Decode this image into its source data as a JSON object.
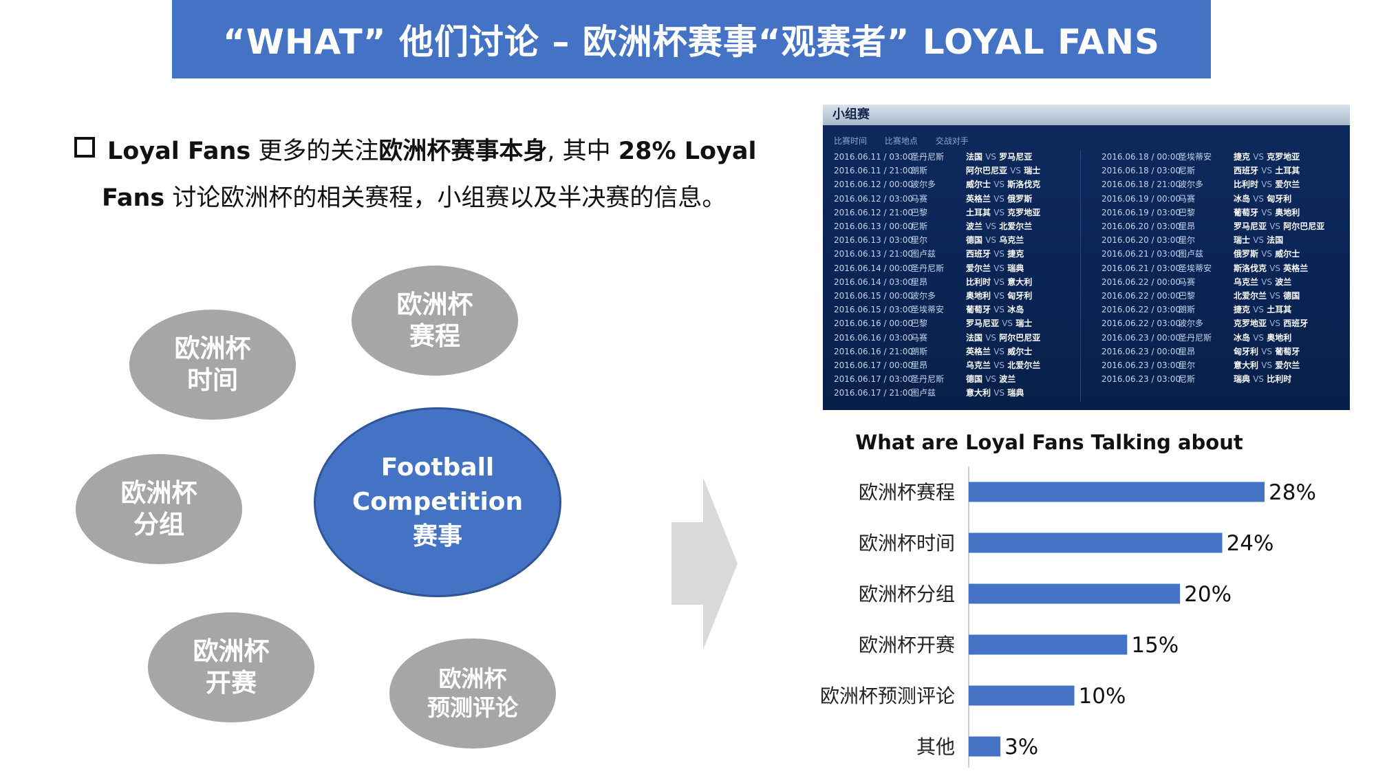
{
  "header": {
    "title": "“WHAT” 他们讨论 – 欧洲杯赛事“观赛者” LOYAL FANS"
  },
  "bullet": {
    "part1": "Loyal Fans",
    "part2": " 更多的关注",
    "part3": "欧洲杯赛事本身",
    "part4": ", 其中 ",
    "part5": "28% Loyal",
    "part6": "Fans",
    "part7": " 讨论欧洲杯的相关赛程，小组赛以及半决赛的信息。"
  },
  "bubbles": {
    "center": {
      "line1": "Football",
      "line2": "Competition",
      "line3": "赛事"
    },
    "schedule": {
      "line1": "欧洲杯",
      "line2": "赛程"
    },
    "time": {
      "line1": "欧洲杯",
      "line2": "时间"
    },
    "group": {
      "line1": "欧洲杯",
      "line2": "分组"
    },
    "opening": {
      "line1": "欧洲杯",
      "line2": "开赛"
    },
    "prediction": {
      "line1": "欧洲杯",
      "line2": "预测评论"
    }
  },
  "schedule_panel": {
    "title": "小组赛",
    "col_headers": [
      "比赛时间",
      "比赛地点",
      "交战对手"
    ],
    "left_matches": [
      {
        "date": "2016.06.11 / 03:00",
        "city": "圣丹尼斯",
        "home": "法国",
        "away": "罗马尼亚"
      },
      {
        "date": "2016.06.11 / 21:00",
        "city": "朗斯",
        "home": "阿尔巴尼亚",
        "away": "瑞士"
      },
      {
        "date": "2016.06.12 / 00:00",
        "city": "波尔多",
        "home": "威尔士",
        "away": "斯洛伐克"
      },
      {
        "date": "2016.06.12 / 03:00",
        "city": "马赛",
        "home": "英格兰",
        "away": "俄罗斯"
      },
      {
        "date": "2016.06.12 / 21:00",
        "city": "巴黎",
        "home": "土耳其",
        "away": "克罗地亚"
      },
      {
        "date": "2016.06.13 / 00:00",
        "city": "尼斯",
        "home": "波兰",
        "away": "北爱尔兰"
      },
      {
        "date": "2016.06.13 / 03:00",
        "city": "里尔",
        "home": "德国",
        "away": "乌克兰"
      },
      {
        "date": "2016.06.13 / 21:00",
        "city": "图卢兹",
        "home": "西班牙",
        "away": "捷克"
      },
      {
        "date": "2016.06.14 / 00:00",
        "city": "圣丹尼斯",
        "home": "爱尔兰",
        "away": "瑞典"
      },
      {
        "date": "2016.06.14 / 03:00",
        "city": "里昂",
        "home": "比利时",
        "away": "意大利"
      },
      {
        "date": "2016.06.15 / 00:00",
        "city": "波尔多",
        "home": "奥地利",
        "away": "匈牙利"
      },
      {
        "date": "2016.06.15 / 03:00",
        "city": "圣埃蒂安",
        "home": "葡萄牙",
        "away": "冰岛"
      },
      {
        "date": "2016.06.16 / 00:00",
        "city": "巴黎",
        "home": "罗马尼亚",
        "away": "瑞士"
      },
      {
        "date": "2016.06.16 / 03:00",
        "city": "马赛",
        "home": "法国",
        "away": "阿尔巴尼亚"
      },
      {
        "date": "2016.06.16 / 21:00",
        "city": "朗斯",
        "home": "英格兰",
        "away": "威尔士"
      },
      {
        "date": "2016.06.17 / 00:00",
        "city": "里昂",
        "home": "乌克兰",
        "away": "北爱尔兰"
      },
      {
        "date": "2016.06.17 / 03:00",
        "city": "圣丹尼斯",
        "home": "德国",
        "away": "波兰"
      },
      {
        "date": "2016.06.17 / 21:00",
        "city": "图卢兹",
        "home": "意大利",
        "away": "瑞典"
      }
    ],
    "right_matches": [
      {
        "date": "2016.06.18 / 00:00",
        "city": "圣埃蒂安",
        "home": "捷克",
        "away": "克罗地亚"
      },
      {
        "date": "2016.06.18 / 03:00",
        "city": "尼斯",
        "home": "西班牙",
        "away": "土耳其"
      },
      {
        "date": "2016.06.18 / 21:00",
        "city": "波尔多",
        "home": "比利时",
        "away": "爱尔兰"
      },
      {
        "date": "2016.06.19 / 00:00",
        "city": "马赛",
        "home": "冰岛",
        "away": "匈牙利"
      },
      {
        "date": "2016.06.19 / 03:00",
        "city": "巴黎",
        "home": "葡萄牙",
        "away": "奥地利"
      },
      {
        "date": "2016.06.20 / 03:00",
        "city": "里昂",
        "home": "罗马尼亚",
        "away": "阿尔巴尼亚"
      },
      {
        "date": "2016.06.20 / 03:00",
        "city": "里尔",
        "home": "瑞士",
        "away": "法国"
      },
      {
        "date": "2016.06.21 / 03:00",
        "city": "图卢兹",
        "home": "俄罗斯",
        "away": "威尔士"
      },
      {
        "date": "2016.06.21 / 03:00",
        "city": "圣埃蒂安",
        "home": "斯洛伐克",
        "away": "英格兰"
      },
      {
        "date": "2016.06.22 / 00:00",
        "city": "马赛",
        "home": "乌克兰",
        "away": "波兰"
      },
      {
        "date": "2016.06.22 / 00:00",
        "city": "巴黎",
        "home": "北爱尔兰",
        "away": "德国"
      },
      {
        "date": "2016.06.22 / 03:00",
        "city": "朗斯",
        "home": "捷克",
        "away": "土耳其"
      },
      {
        "date": "2016.06.22 / 03:00",
        "city": "波尔多",
        "home": "克罗地亚",
        "away": "西班牙"
      },
      {
        "date": "2016.06.23 / 00:00",
        "city": "圣丹尼斯",
        "home": "冰岛",
        "away": "奥地利"
      },
      {
        "date": "2016.06.23 / 00:00",
        "city": "里昂",
        "home": "匈牙利",
        "away": "葡萄牙"
      },
      {
        "date": "2016.06.23 / 03:00",
        "city": "里尔",
        "home": "意大利",
        "away": "爱尔兰"
      },
      {
        "date": "2016.06.23 / 03:00",
        "city": "尼斯",
        "home": "瑞典",
        "away": "比利时"
      }
    ],
    "vs": "VS"
  },
  "chart_data": {
    "type": "bar",
    "orientation": "horizontal",
    "title": "What are Loyal Fans Talking about",
    "categories": [
      "欧洲杯赛程",
      "欧洲杯时间",
      "欧洲杯分组",
      "欧洲杯开赛",
      "欧洲杯预测评论",
      "其他"
    ],
    "values": [
      28,
      24,
      20,
      15,
      10,
      3
    ],
    "value_labels": [
      "28%",
      "24%",
      "20%",
      "15%",
      "10%",
      "3%"
    ],
    "xlim": [
      0,
      28
    ],
    "bar_color": "#4472C4",
    "grid": false,
    "legend": "none"
  },
  "colors": {
    "accent": "#4472C4",
    "bubble_gray": "#A6A6A6",
    "schedule_bg": "#0A2456"
  }
}
